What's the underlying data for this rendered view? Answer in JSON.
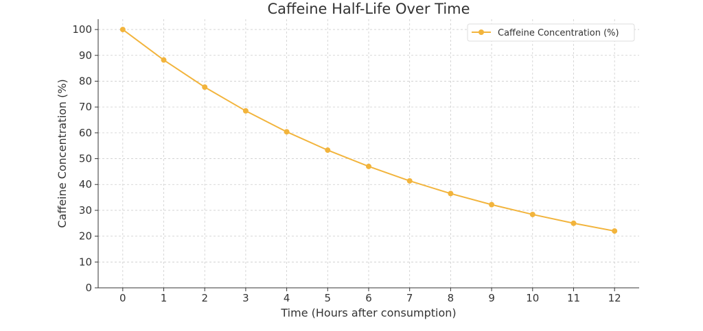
{
  "chart_data": {
    "type": "line",
    "title": "Caffeine Half-Life Over Time",
    "xlabel": "Time (Hours after consumption)",
    "ylabel": "Caffeine Concentration (%)",
    "x": [
      0,
      1,
      2,
      3,
      4,
      5,
      6,
      7,
      8,
      9,
      10,
      11,
      12
    ],
    "series": [
      {
        "name": "Caffeine Concentration (%)",
        "values": [
          100,
          88.2,
          77.7,
          68.5,
          60.4,
          53.3,
          47.0,
          41.4,
          36.5,
          32.2,
          28.4,
          25.0,
          22.0
        ],
        "color": "#f2b43c",
        "marker": "circle"
      }
    ],
    "xlim": [
      -0.6,
      12.6
    ],
    "ylim": [
      0,
      104
    ],
    "xticks": [
      0,
      1,
      2,
      3,
      4,
      5,
      6,
      7,
      8,
      9,
      10,
      11,
      12
    ],
    "yticks": [
      0,
      10,
      20,
      30,
      40,
      50,
      60,
      70,
      80,
      90,
      100
    ],
    "grid": true,
    "legend": "top-right"
  }
}
